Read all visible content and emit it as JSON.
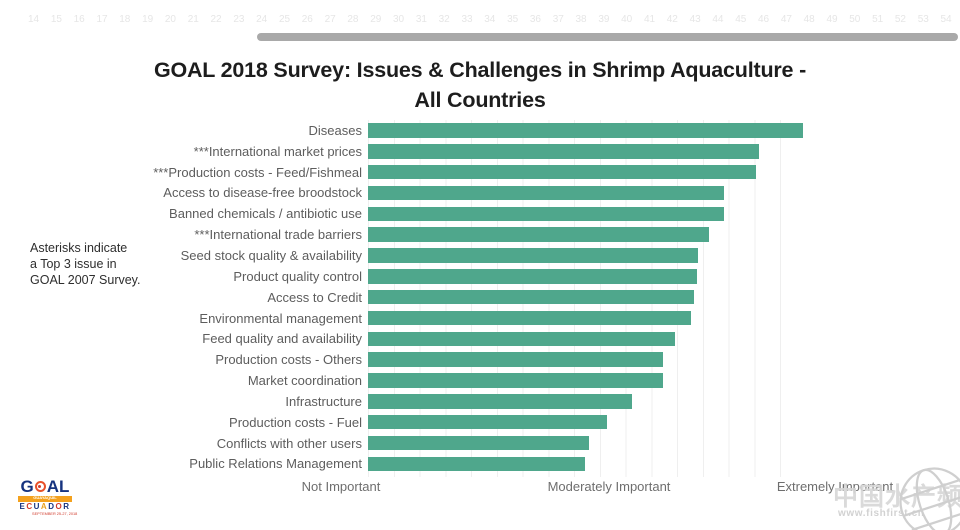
{
  "page": {
    "top_ruler_numbers": [
      "14",
      "15",
      "16",
      "17",
      "18",
      "19",
      "20",
      "21",
      "22",
      "23",
      "24",
      "25",
      "26",
      "27",
      "28",
      "29",
      "30",
      "31",
      "32",
      "33",
      "34",
      "35",
      "36",
      "37",
      "38",
      "39",
      "40",
      "41",
      "42",
      "43",
      "44",
      "45",
      "46",
      "47",
      "48",
      "49",
      "50",
      "51",
      "52",
      "53",
      "54"
    ]
  },
  "title": {
    "line1": "GOAL 2018 Survey: Issues & Challenges in Shrimp Aquaculture -",
    "line2": "All Countries"
  },
  "annotation": {
    "line1": "Asterisks indicate",
    "line2": "a Top 3 issue in",
    "line3": "GOAL 2007 Survey."
  },
  "chart_data": {
    "type": "bar",
    "orientation": "horizontal",
    "title": "GOAL 2018 Survey: Issues & Challenges in Shrimp Aquaculture - All Countries",
    "categories": [
      "Diseases",
      "***International market prices",
      "***Production costs - Feed/Fishmeal",
      "Access to disease-free broodstock",
      "Banned chemicals / antibiotic use",
      "***International trade barriers",
      "Seed stock quality & availability",
      "Product quality control",
      "Access to Credit",
      "Environmental management",
      "Feed quality and availability",
      "Production costs - Others",
      "Market coordination",
      "Infrastructure",
      "Production costs - Fuel",
      "Conflicts with other users",
      "Public Relations Management"
    ],
    "values": [
      4.37,
      4.03,
      4.01,
      3.76,
      3.76,
      3.64,
      3.56,
      3.55,
      3.53,
      3.5,
      3.38,
      3.29,
      3.29,
      3.05,
      2.85,
      2.71,
      2.68
    ],
    "axis_range": [
      1,
      5
    ],
    "axis_ticks": [
      "Not Important",
      "Moderately Important",
      "Extremely Important"
    ],
    "grid": true,
    "legend": "none",
    "bar_color": "#4FA78C",
    "gridline_color": "#efefef"
  },
  "logo": {
    "word_g": "G",
    "word_al": "AL",
    "city_band": "GUAYAQUIL",
    "country": "ECUADOR",
    "date": "SEPTEMBER 25-27, 2018",
    "colors": {
      "blue": "#16337f",
      "red": "#d03a2b",
      "orange": "#f4a11d",
      "country_letters": [
        "#16337f",
        "#d03a2b",
        "#16337f",
        "#e8a020",
        "#16337f",
        "#d03a2b",
        "#16337f"
      ]
    }
  },
  "watermark": {
    "text": "中国水产频道",
    "url": "www.fishfirst.cn",
    "color": "#d2d2d2"
  }
}
